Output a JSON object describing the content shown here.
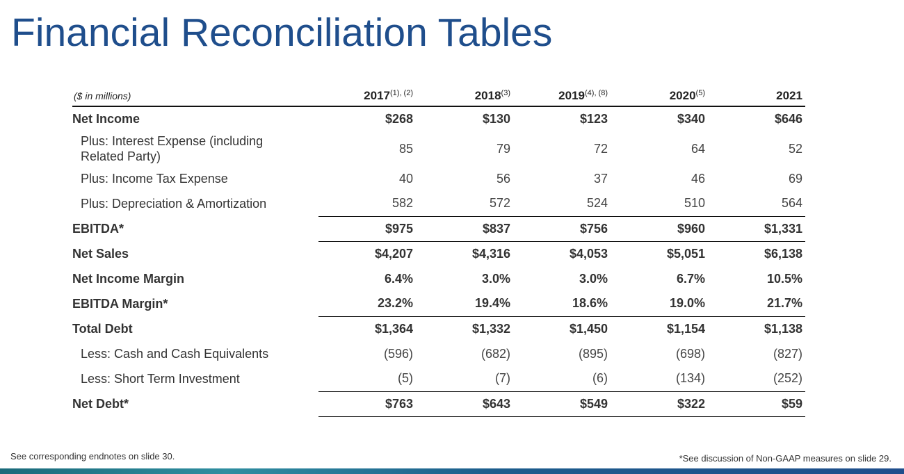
{
  "title": "Financial Reconciliation Tables",
  "table": {
    "unit_label": "($ in millions)",
    "columns": [
      {
        "year": "2017",
        "note": "(1), (2)"
      },
      {
        "year": "2018",
        "note": "(3)"
      },
      {
        "year": "2019",
        "note": "(4), (8)"
      },
      {
        "year": "2020",
        "note": "(5)"
      },
      {
        "year": "2021",
        "note": ""
      }
    ],
    "rows": [
      {
        "label": "Net Income",
        "values": [
          "$268",
          "$130",
          "$123",
          "$340",
          "$646"
        ]
      },
      {
        "label": "Plus: Interest Expense (including Related Party)",
        "values": [
          "85",
          "79",
          "72",
          "64",
          "52"
        ]
      },
      {
        "label": "Plus: Income Tax Expense",
        "values": [
          "40",
          "56",
          "37",
          "46",
          "69"
        ]
      },
      {
        "label": "Plus: Depreciation & Amortization",
        "values": [
          "582",
          "572",
          "524",
          "510",
          "564"
        ]
      },
      {
        "label": "EBITDA*",
        "values": [
          "$975",
          "$837",
          "$756",
          "$960",
          "$1,331"
        ]
      },
      {
        "label": "Net Sales",
        "values": [
          "$4,207",
          "$4,316",
          "$4,053",
          "$5,051",
          "$6,138"
        ]
      },
      {
        "label": "Net Income Margin",
        "values": [
          "6.4%",
          "3.0%",
          "3.0%",
          "6.7%",
          "10.5%"
        ]
      },
      {
        "label": "EBITDA Margin*",
        "values": [
          "23.2%",
          "19.4%",
          "18.6%",
          "19.0%",
          "21.7%"
        ]
      },
      {
        "label": "Total Debt",
        "values": [
          "$1,364",
          "$1,332",
          "$1,450",
          "$1,154",
          "$1,138"
        ]
      },
      {
        "label": "Less: Cash and Cash Equivalents",
        "values": [
          "(596)",
          "(682)",
          "(895)",
          "(698)",
          "(827)"
        ]
      },
      {
        "label": "Less: Short Term Investment",
        "values": [
          "(5)",
          "(7)",
          "(6)",
          "(134)",
          "(252)"
        ]
      },
      {
        "label": "Net Debt*",
        "values": [
          "$763",
          "$643",
          "$549",
          "$322",
          "$59"
        ]
      }
    ]
  },
  "footer": {
    "left": "See corresponding endnotes on slide 30.",
    "right": "*See discussion of Non-GAAP measures on slide 29."
  }
}
